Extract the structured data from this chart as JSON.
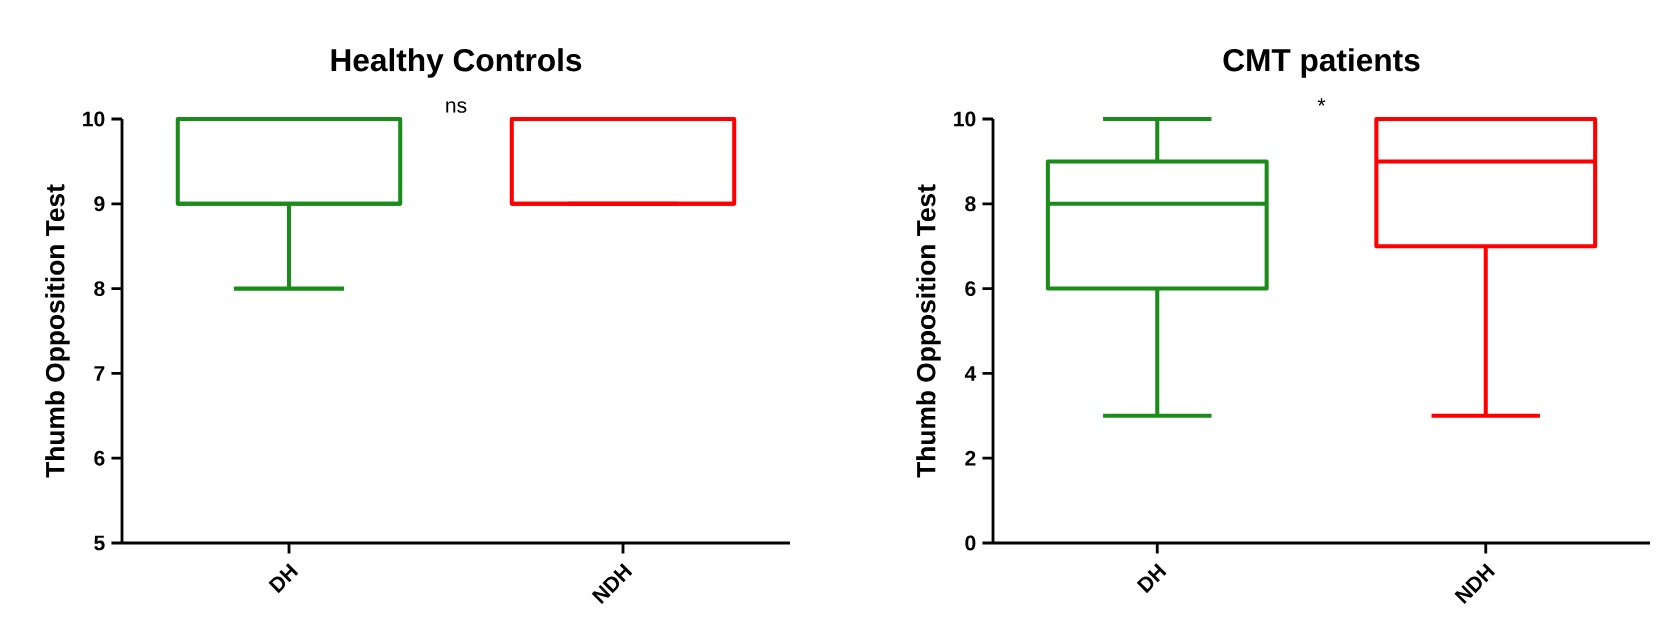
{
  "chart_data": [
    {
      "type": "box",
      "title": "Healthy Controls",
      "ylabel": "Thumb Opposition Test",
      "categories": [
        "DH",
        "NDH"
      ],
      "colors": [
        "#1a8c1a",
        "#ff0000"
      ],
      "boxes": [
        {
          "low": 8,
          "q1": 9,
          "median": 9,
          "q3": 10,
          "high": 10
        },
        {
          "low": 9,
          "q1": 9,
          "median": 9,
          "q3": 10,
          "high": 10
        }
      ],
      "ylim": [
        5,
        10
      ],
      "yticks": [
        5,
        6,
        7,
        8,
        9,
        10
      ],
      "annotations": [
        "ns"
      ]
    },
    {
      "type": "box",
      "title": "CMT patients",
      "ylabel": "Thumb Opposition Test",
      "categories": [
        "DH",
        "NDH"
      ],
      "colors": [
        "#1a8c1a",
        "#ff0000"
      ],
      "boxes": [
        {
          "low": 3,
          "q1": 6,
          "median": 8,
          "q3": 9,
          "high": 10
        },
        {
          "low": 3,
          "q1": 7,
          "median": 9,
          "q3": 10,
          "high": 10
        }
      ],
      "ylim": [
        0,
        10
      ],
      "yticks": [
        0,
        2,
        4,
        6,
        8,
        10
      ],
      "annotations": [
        "*"
      ]
    }
  ]
}
